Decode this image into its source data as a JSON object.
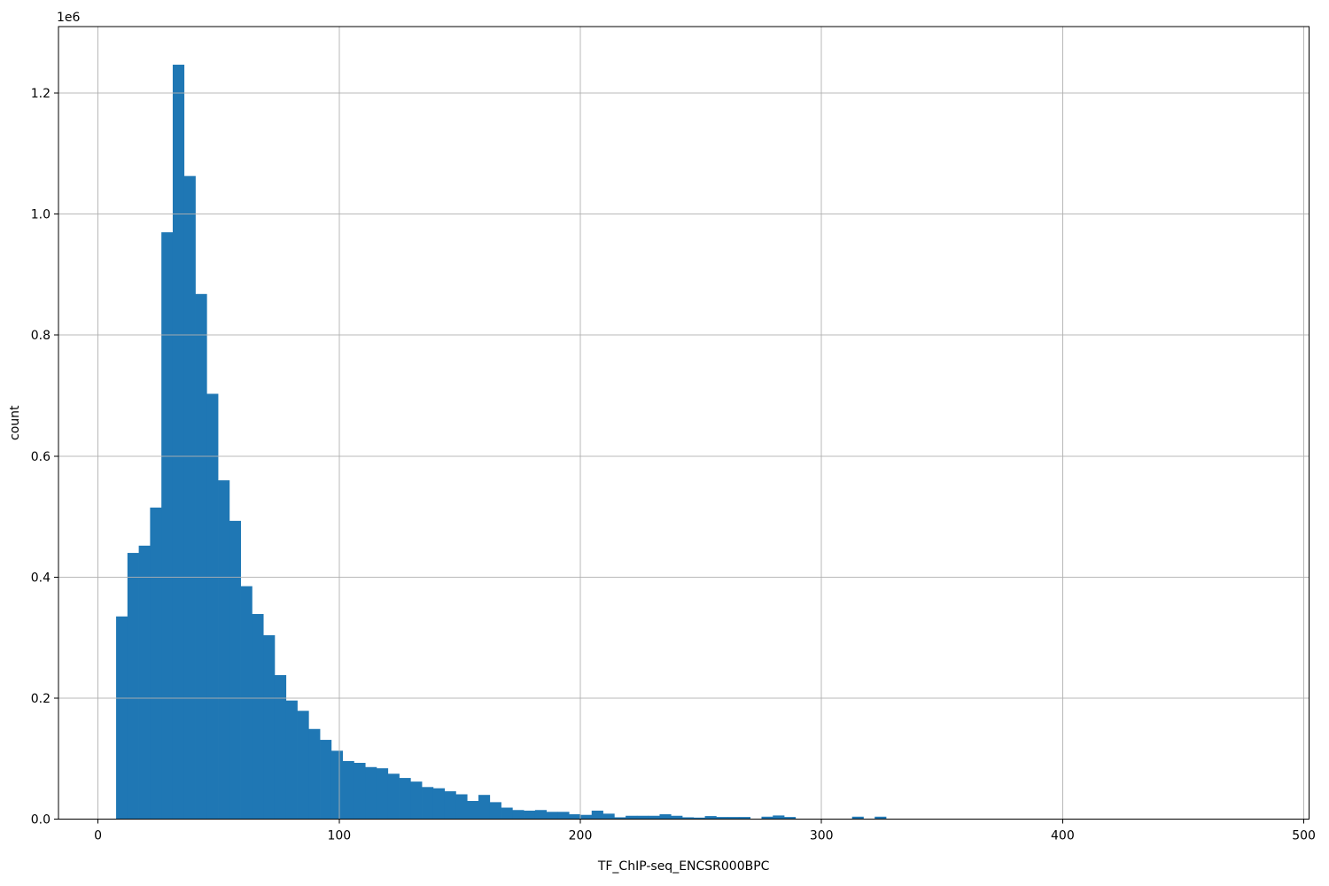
{
  "figure": {
    "background": "#ffffff"
  },
  "chart_data": {
    "type": "bar",
    "subtype": "histogram",
    "title": "",
    "xlabel": "TF_ChIP-seq_ENCSR000BPC",
    "ylabel": "count",
    "y_offset_label": "1e6",
    "bar_color": "#1f77b4",
    "grid_color": "#b0b0b0",
    "axis_color": "#000000",
    "grid": true,
    "legend": "none",
    "xlim": [
      -16.4,
      502.1
    ],
    "ylim": [
      0,
      1310000
    ],
    "x_ticks": {
      "values": [
        0,
        100,
        200,
        300,
        400,
        500
      ],
      "labels": [
        "0",
        "100",
        "200",
        "300",
        "400",
        "500"
      ]
    },
    "y_ticks": {
      "values": [
        0,
        200000,
        400000,
        600000,
        800000,
        1000000,
        1200000
      ],
      "labels": [
        "0.0",
        "0.2",
        "0.4",
        "0.6",
        "0.8",
        "1.0",
        "1.2"
      ]
    },
    "histogram": {
      "bin_start": 7.5,
      "bin_width": 4.695,
      "counts": [
        335000,
        440000,
        452000,
        515000,
        970000,
        1247000,
        1063000,
        868000,
        703000,
        560000,
        493000,
        385000,
        339000,
        304000,
        238000,
        196000,
        179000,
        149000,
        131000,
        113000,
        96000,
        93000,
        86000,
        84000,
        75000,
        68000,
        62000,
        53000,
        51000,
        46000,
        41000,
        30000,
        40000,
        28000,
        19000,
        15000,
        14000,
        15000,
        12000,
        12000,
        8000,
        7000,
        14000,
        9000,
        3000,
        5500,
        5500,
        5500,
        8000,
        5500,
        3000,
        2500,
        5000,
        3500,
        3500,
        3500,
        0,
        4000,
        6000,
        3500,
        0,
        0,
        0,
        0,
        0,
        4000,
        0,
        4000,
        0
      ]
    }
  }
}
